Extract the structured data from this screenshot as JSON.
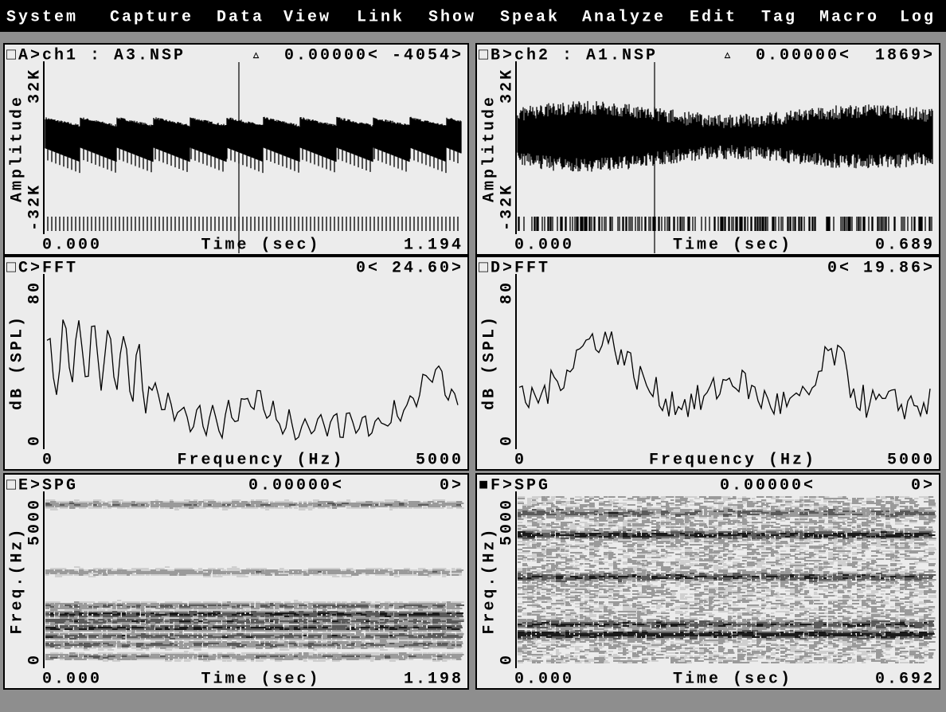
{
  "menu": [
    "System",
    "Capture",
    "Data",
    "View",
    "Link",
    "Show",
    "Speak",
    "Analyze",
    "Edit",
    "Tag",
    "Macro",
    "Log"
  ],
  "panels": [
    {
      "title": "□A>ch1 : A3.NSP",
      "cursor": "▵",
      "readout": "0.00000<",
      "value": "-4054>",
      "y_label": "Amplitude",
      "y_ticks": [
        "32K",
        "-32K"
      ],
      "x_ticks": [
        "0.000",
        "1.194"
      ],
      "x_label": "Time (sec)"
    },
    {
      "title": "□B>ch2 : A1.NSP",
      "cursor": "▵",
      "readout": "0.00000<",
      "value": "1869>",
      "y_label": "Amplitude",
      "y_ticks": [
        "32K",
        "-32K"
      ],
      "x_ticks": [
        "0.000",
        "0.689"
      ],
      "x_label": "Time (sec)"
    },
    {
      "title": "□C>FFT",
      "readout": "0<",
      "value": "24.60>",
      "y_label": "dB (SPL)",
      "y_ticks": [
        "80",
        "0"
      ],
      "x_ticks": [
        "0",
        "5000"
      ],
      "x_label": "Frequency (Hz)"
    },
    {
      "title": "□D>FFT",
      "readout": "0<",
      "value": "19.86>",
      "y_label": "dB (SPL)",
      "y_ticks": [
        "80",
        "0"
      ],
      "x_ticks": [
        "0",
        "5000"
      ],
      "x_label": "Frequency (Hz)"
    },
    {
      "title": "□E>SPG",
      "readout": "0.00000<",
      "value": "0>",
      "y_label": "Freq.(Hz)",
      "y_ticks": [
        "5000",
        "0"
      ],
      "x_ticks": [
        "0.000",
        "1.198"
      ],
      "x_label": "Time (sec)"
    },
    {
      "title": "■F>SPG",
      "readout": "0.00000<",
      "value": "0>",
      "y_label": "Freq.(Hz)",
      "y_ticks": [
        "5000",
        "0"
      ],
      "x_ticks": [
        "0.000",
        "0.692"
      ],
      "x_label": "Time (sec)"
    }
  ]
}
